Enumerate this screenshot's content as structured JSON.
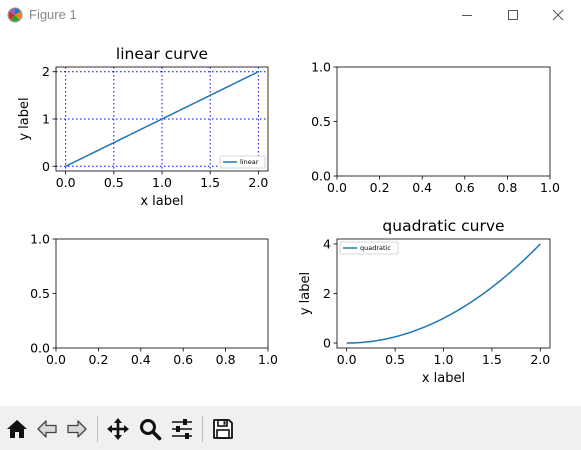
{
  "window": {
    "title": "Figure 1",
    "controls": [
      "minimize",
      "maximize",
      "close"
    ]
  },
  "figure": {
    "subplots": [
      {
        "position": "top-left",
        "title": "linear curve",
        "xlabel": "x label",
        "ylabel": "y label",
        "xticks": [
          "0.0",
          "0.5",
          "1.0",
          "1.5",
          "2.0"
        ],
        "yticks": [
          "0",
          "1",
          "2"
        ],
        "grid": "on (blue dotted)",
        "legend": {
          "placement": "lower-right",
          "entries": [
            "linear"
          ]
        }
      },
      {
        "position": "top-right",
        "title": "",
        "xticks": [
          "0.0",
          "0.2",
          "0.4",
          "0.6",
          "0.8",
          "1.0"
        ],
        "yticks": [
          "0.0",
          "0.5",
          "1.0"
        ],
        "empty": true
      },
      {
        "position": "bottom-left",
        "title": "",
        "xticks": [
          "0.0",
          "0.2",
          "0.4",
          "0.6",
          "0.8",
          "1.0"
        ],
        "yticks": [
          "0.0",
          "0.5",
          "1.0"
        ],
        "empty": true
      },
      {
        "position": "bottom-right",
        "title": "quadratic curve",
        "xlabel": "x label",
        "ylabel": "y label",
        "xticks": [
          "0.0",
          "0.5",
          "1.0",
          "1.5",
          "2.0"
        ],
        "yticks": [
          "0",
          "2",
          "4"
        ],
        "legend": {
          "placement": "upper-left",
          "entries": [
            "quadratic"
          ]
        }
      }
    ]
  },
  "chart_data": [
    {
      "type": "line",
      "title": "linear curve",
      "xlabel": "x label",
      "ylabel": "y label",
      "xlim": [
        -0.1,
        2.1
      ],
      "ylim": [
        -0.1,
        2.1
      ],
      "grid": true,
      "legend": "lower-right",
      "series": [
        {
          "name": "linear",
          "color": "#1f77b4",
          "x": [
            0,
            0.5,
            1,
            1.5,
            2
          ],
          "y": [
            0,
            0.5,
            1,
            1.5,
            2
          ]
        }
      ]
    },
    {
      "type": "line",
      "title": "",
      "xlim": [
        0,
        1
      ],
      "ylim": [
        0,
        1
      ],
      "series": []
    },
    {
      "type": "line",
      "title": "",
      "xlim": [
        0,
        1
      ],
      "ylim": [
        0,
        1
      ],
      "series": []
    },
    {
      "type": "line",
      "title": "quadratic curve",
      "xlabel": "x label",
      "ylabel": "y label",
      "xlim": [
        -0.1,
        2.1
      ],
      "ylim": [
        -0.2,
        4.2
      ],
      "legend": "upper-left",
      "series": [
        {
          "name": "quadratic",
          "color": "#1f77b4",
          "x": [
            0,
            0.25,
            0.5,
            0.75,
            1,
            1.25,
            1.5,
            1.75,
            2
          ],
          "y": [
            0,
            0.0625,
            0.25,
            0.5625,
            1,
            1.5625,
            2.25,
            3.0625,
            4
          ]
        }
      ]
    }
  ],
  "toolbar": {
    "buttons": [
      {
        "name": "home",
        "icon": "home-icon"
      },
      {
        "name": "back",
        "icon": "back-arrow-icon"
      },
      {
        "name": "forward",
        "icon": "forward-arrow-icon"
      },
      {
        "name": "pan",
        "icon": "move-icon"
      },
      {
        "name": "zoom",
        "icon": "magnifier-icon"
      },
      {
        "name": "configure-subplots",
        "icon": "sliders-icon"
      },
      {
        "name": "save",
        "icon": "floppy-disk-icon"
      }
    ]
  },
  "colors": {
    "line": "#1f77b4",
    "grid": "#0000ff",
    "toolbar_bg": "#f0f0f0"
  }
}
